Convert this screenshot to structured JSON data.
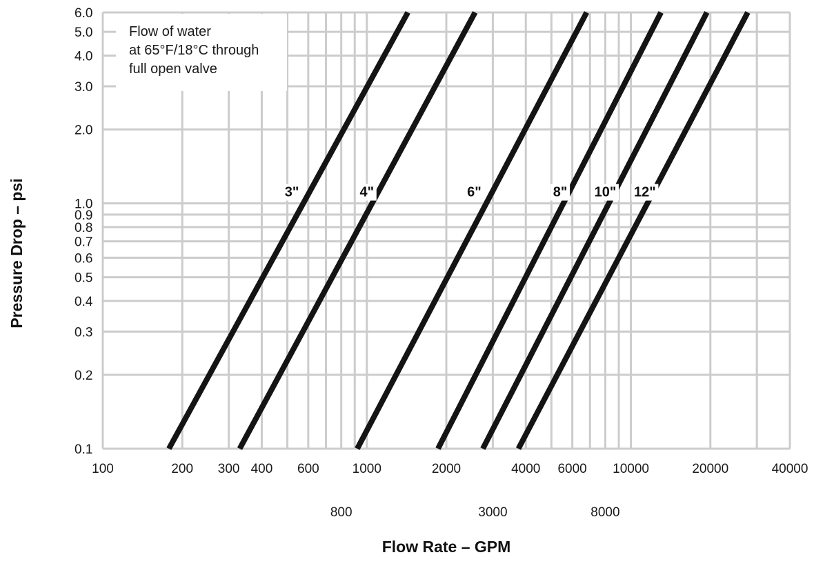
{
  "chart_data": {
    "type": "line",
    "xlabel": "Flow Rate – GPM",
    "ylabel": "Pressure Drop – psi",
    "x_scale": "log",
    "y_scale": "log",
    "xlim": [
      100,
      40000
    ],
    "ylim": [
      0.1,
      6.0
    ],
    "grid": true,
    "annotation": [
      "Flow of water",
      "at 65°F/18°C through",
      "full open valve"
    ],
    "x_ticks_upper": [
      {
        "value": 100,
        "label": "100"
      },
      {
        "value": 200,
        "label": "200"
      },
      {
        "value": 300,
        "label": "300"
      },
      {
        "value": 400,
        "label": "400"
      },
      {
        "value": 600,
        "label": "600"
      },
      {
        "value": 1000,
        "label": "1000"
      },
      {
        "value": 2000,
        "label": "2000"
      },
      {
        "value": 4000,
        "label": "4000"
      },
      {
        "value": 6000,
        "label": "6000"
      },
      {
        "value": 10000,
        "label": "10000"
      },
      {
        "value": 20000,
        "label": "20000"
      },
      {
        "value": 40000,
        "label": "40000"
      }
    ],
    "x_ticks_lower": [
      {
        "value": 800,
        "label": "800"
      },
      {
        "value": 3000,
        "label": "3000"
      },
      {
        "value": 8000,
        "label": "8000"
      }
    ],
    "y_ticks": [
      {
        "value": 0.1,
        "label": "0.1"
      },
      {
        "value": 0.2,
        "label": "0.2"
      },
      {
        "value": 0.3,
        "label": "0.3"
      },
      {
        "value": 0.4,
        "label": "0.4"
      },
      {
        "value": 0.5,
        "label": "0.5"
      },
      {
        "value": 0.6,
        "label": "0.6"
      },
      {
        "value": 0.7,
        "label": "0.7"
      },
      {
        "value": 0.8,
        "label": "0.8"
      },
      {
        "value": 0.9,
        "label": "0.9"
      },
      {
        "value": 1.0,
        "label": "1.0"
      },
      {
        "value": 2.0,
        "label": "2.0"
      },
      {
        "value": 3.0,
        "label": "3.0"
      },
      {
        "value": 4.0,
        "label": "4.0"
      },
      {
        "value": 5.0,
        "label": "5.0"
      },
      {
        "value": 6.0,
        "label": "6.0"
      }
    ],
    "x_gridlines": [
      100,
      200,
      300,
      400,
      500,
      600,
      700,
      800,
      900,
      1000,
      2000,
      3000,
      4000,
      5000,
      6000,
      7000,
      8000,
      9000,
      10000,
      20000,
      30000,
      40000
    ],
    "y_gridlines": [
      0.1,
      0.2,
      0.3,
      0.4,
      0.5,
      0.6,
      0.7,
      0.8,
      0.9,
      1.0,
      2.0,
      3.0,
      4.0,
      5.0,
      6.0
    ],
    "series": [
      {
        "name": "3\"",
        "points": [
          [
            178,
            0.1
          ],
          [
            1430,
            6.0
          ]
        ],
        "label_at": [
          520,
          1.0
        ]
      },
      {
        "name": "4\"",
        "points": [
          [
            330,
            0.1
          ],
          [
            2570,
            6.0
          ]
        ],
        "label_at": [
          1000,
          1.0
        ]
      },
      {
        "name": "6\"",
        "points": [
          [
            920,
            0.1
          ],
          [
            6800,
            6.0
          ]
        ],
        "label_at": [
          2550,
          1.0
        ]
      },
      {
        "name": "8\"",
        "points": [
          [
            1860,
            0.1
          ],
          [
            13000,
            6.0
          ]
        ],
        "label_at": [
          5400,
          1.0
        ]
      },
      {
        "name": "10\"",
        "points": [
          [
            2750,
            0.1
          ],
          [
            19400,
            6.0
          ]
        ],
        "label_at": [
          8000,
          1.0
        ]
      },
      {
        "name": "12\"",
        "points": [
          [
            3750,
            0.1
          ],
          [
            27700,
            6.0
          ]
        ],
        "label_at": [
          11300,
          1.0
        ]
      }
    ],
    "line_color": "#141414",
    "grid_color": "#cccccc"
  }
}
